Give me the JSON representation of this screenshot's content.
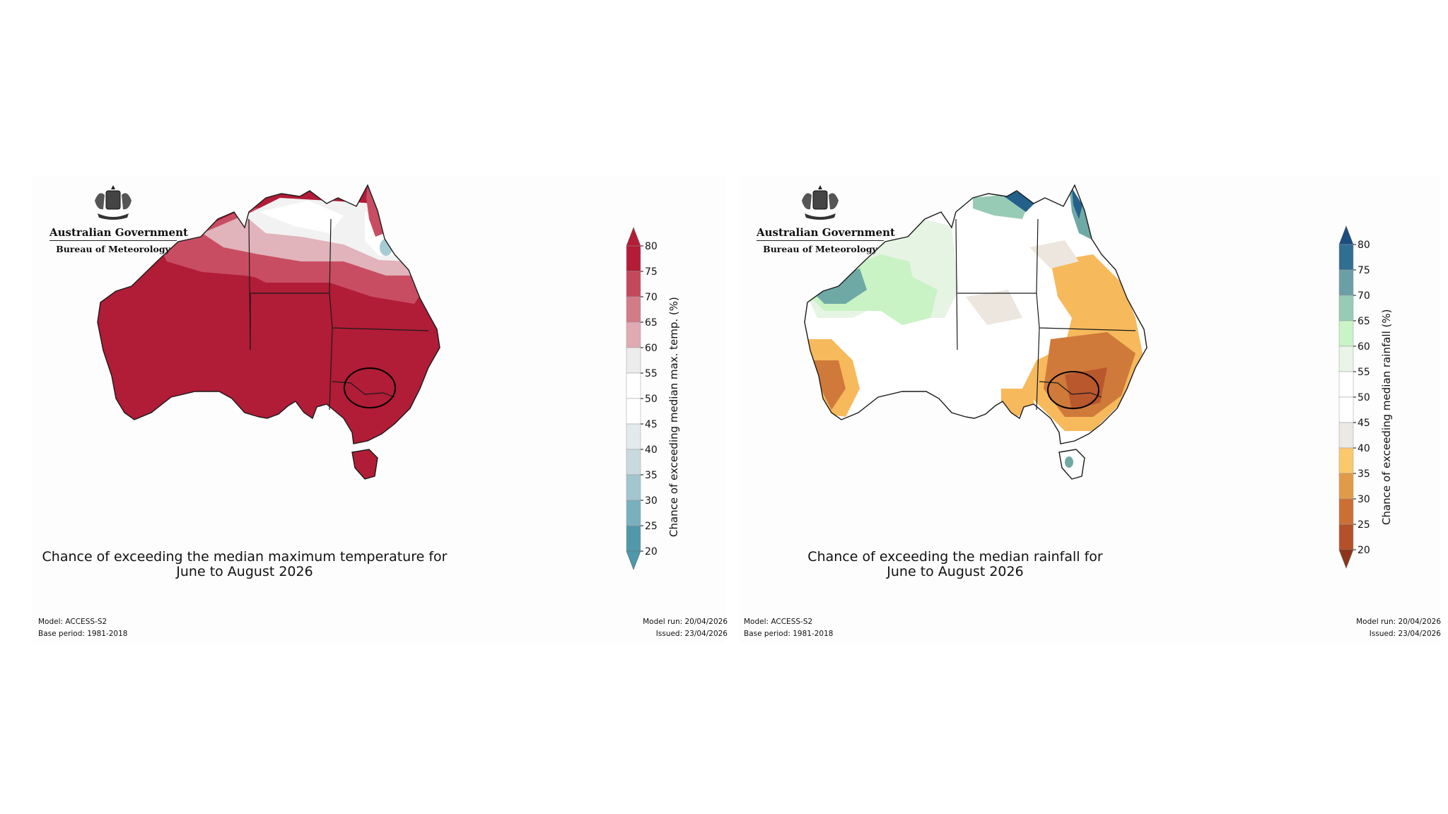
{
  "panels": [
    {
      "id": "temp",
      "logo": {
        "government": "Australian Government",
        "bureau": "Bureau of Meteorology"
      },
      "title_line1": "Chance of exceeding the median maximum temperature for",
      "title_line2": "June to August 2026",
      "colorbar_label": "Chance of exceeding median max. temp. (%)",
      "ticks": [
        "80",
        "75",
        "70",
        "65",
        "60",
        "55",
        "50",
        "45",
        "40",
        "35",
        "30",
        "25",
        "20"
      ],
      "colors": [
        "#b51c36",
        "#c4475a",
        "#d37b87",
        "#e0aab2",
        "#ececec",
        "#ffffff",
        "#ffffff",
        "#e3eaed",
        "#c8dade",
        "#a2c6ce",
        "#79b0bd",
        "#5098aa"
      ],
      "top_arrow": "#b51c36",
      "bottom_arrow": "#4e98ab",
      "model": "Model: ACCESS-S2",
      "base_period": "Base period: 1981-2018",
      "model_run": "Model run: 20/04/2026",
      "issued": "Issued: 23/04/2026"
    },
    {
      "id": "rain",
      "logo": {
        "government": "Australian Government",
        "bureau": "Bureau of Meteorology"
      },
      "title_line1": "Chance of exceeding the median rainfall for",
      "title_line2": "June to August 2026",
      "colorbar_label": "Chance of exceeding median rainfall (%)",
      "ticks": [
        "80",
        "75",
        "70",
        "65",
        "60",
        "55",
        "50",
        "45",
        "40",
        "35",
        "30",
        "25",
        "20"
      ],
      "colors": [
        "#2f6f92",
        "#6b9fa6",
        "#97cbb5",
        "#c9f4c6",
        "#eaf5e8",
        "#ffffff",
        "#ffffff",
        "#ece8e3",
        "#fbc86a",
        "#e19a48",
        "#cc6f34",
        "#b5512a"
      ],
      "top_arrow": "#1c4d80",
      "bottom_arrow": "#8c3518",
      "model": "Model: ACCESS-S2",
      "base_period": "Base period: 1981-2018",
      "model_run": "Model run: 20/04/2026",
      "issued": "Issued: 23/04/2026"
    }
  ],
  "map_fills": {
    "temp": {
      "main": "#b11c37",
      "mid": "#c94d62",
      "light": "#e1b3bb",
      "pale": "#f2f2f2",
      "white": "#ffffff",
      "cool": "#a7cbd3"
    },
    "rain": {
      "main": "#ffffff",
      "green": "#c9f2c5",
      "pale_green": "#e6f4e4",
      "teal": "#6fa9a6",
      "navy": "#23618b",
      "orange": "#f6b95c",
      "dark_orange": "#cf7a3a",
      "rust": "#b9572d",
      "grey": "#ece6df"
    }
  }
}
